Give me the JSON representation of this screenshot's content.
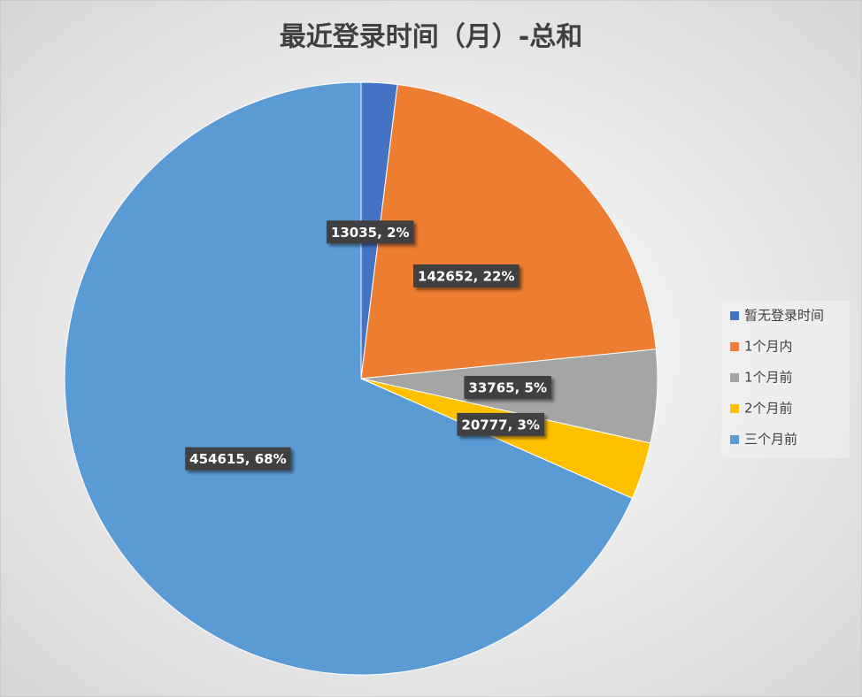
{
  "chart_data": {
    "type": "pie",
    "title": "最近登录时间（月）-总和",
    "categories": [
      "暂无登录时间",
      "1个月内",
      "1个月前",
      "2个月前",
      "三个月前"
    ],
    "values": [
      13035,
      142652,
      33765,
      20777,
      454615
    ],
    "value_labels": [
      "13035, 2%",
      "142652, 22%",
      "33765, 5%",
      "20777, 3%",
      "454615, 68%"
    ],
    "colors": [
      "#4472c4",
      "#ed7d31",
      "#a5a5a5",
      "#ffc000",
      "#5b9bd5"
    ],
    "legend": "right"
  }
}
